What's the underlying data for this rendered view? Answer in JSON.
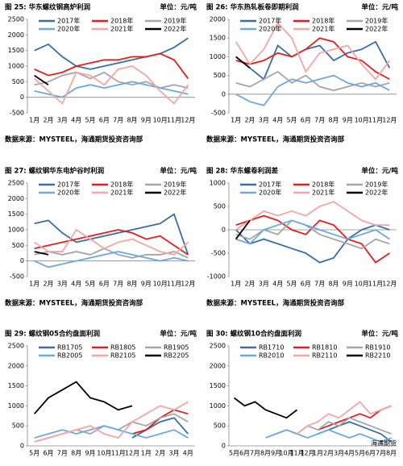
{
  "chart_data": [
    {
      "type": "line",
      "title": "图 25:  华东螺纹钢高炉利润",
      "unit": "单位：元/吨",
      "source": "数据来源：MYSTEEL，海通期货投资咨询部",
      "categories": [
        "1月",
        "2月",
        "3月",
        "4月",
        "5月",
        "6月",
        "7月",
        "8月",
        "9月",
        "10月",
        "11月",
        "12月"
      ],
      "ylim": [
        -500,
        2500
      ],
      "yticks": [
        -500,
        0,
        500,
        1000,
        1500,
        2000,
        2500
      ],
      "series": [
        {
          "name": "2017年",
          "color": "#3a6ea5",
          "values": [
            1500,
            1700,
            1300,
            1000,
            900,
            1000,
            1100,
            1200,
            1300,
            1400,
            1600,
            1900
          ]
        },
        {
          "name": "2018年",
          "color": "#e02020",
          "values": [
            900,
            700,
            800,
            1000,
            1100,
            1200,
            1200,
            1300,
            1300,
            1400,
            1200,
            600
          ]
        },
        {
          "name": "2019年",
          "color": "#a6a6a6",
          "values": [
            400,
            500,
            700,
            800,
            600,
            800,
            500,
            400,
            500,
            300,
            400,
            300
          ]
        },
        {
          "name": "2020年",
          "color": "#6fa8dc",
          "values": [
            200,
            100,
            0,
            300,
            400,
            300,
            400,
            500,
            400,
            300,
            200,
            100
          ]
        },
        {
          "name": "2021年",
          "color": "#f4a6a6",
          "values": [
            600,
            200,
            -200,
            800,
            700,
            400,
            900,
            1000,
            700,
            200,
            -200,
            400
          ]
        },
        {
          "name": "2022年",
          "color": "#000000",
          "values": [
            700,
            400,
            null,
            null,
            null,
            null,
            null,
            null,
            null,
            null,
            null,
            null
          ]
        }
      ]
    },
    {
      "type": "line",
      "title": "图 26:  华东热轧板卷即期利润",
      "unit": "单位：元/吨",
      "source": "数据来源：MYSTEEL，海通期货投资咨询部",
      "categories": [
        "1月",
        "2月",
        "3月",
        "4月",
        "5月",
        "6月",
        "7月",
        "8月",
        "9月",
        "10月",
        "11月",
        "12月"
      ],
      "ylim": [
        -500,
        2000
      ],
      "yticks": [
        -500,
        0,
        500,
        1000,
        1500,
        2000
      ],
      "series": [
        {
          "name": "2017年",
          "color": "#3a6ea5",
          "values": [
            1000,
            700,
            400,
            1300,
            1000,
            1200,
            1300,
            900,
            1100,
            1200,
            1400,
            700
          ]
        },
        {
          "name": "2018年",
          "color": "#e02020",
          "values": [
            900,
            800,
            900,
            1100,
            1000,
            1200,
            1500,
            1400,
            1000,
            900,
            600,
            400
          ]
        },
        {
          "name": "2019年",
          "color": "#a6a6a6",
          "values": [
            300,
            200,
            400,
            600,
            300,
            500,
            200,
            100,
            200,
            300,
            200,
            300
          ]
        },
        {
          "name": "2020年",
          "color": "#6fa8dc",
          "values": [
            0,
            -200,
            -300,
            200,
            400,
            300,
            400,
            500,
            300,
            200,
            300,
            100
          ]
        },
        {
          "name": "2021年",
          "color": "#f4a6a6",
          "values": [
            1400,
            800,
            1200,
            1900,
            1500,
            600,
            1100,
            1200,
            1300,
            800,
            400,
            900
          ]
        },
        {
          "name": "2022年",
          "color": "#000000",
          "values": [
            1000,
            700,
            null,
            null,
            null,
            null,
            null,
            null,
            null,
            null,
            null,
            null
          ]
        }
      ]
    },
    {
      "type": "line",
      "title": "图 27:  螺纹钢华东电炉谷时利润",
      "unit": "单位：元/吨",
      "source": "数据来源：MYSTEEL，海通期货投资咨询部",
      "categories": [
        "1月",
        "2月",
        "3月",
        "4月",
        "5月",
        "6月",
        "7月",
        "8月",
        "9月",
        "10月",
        "11月",
        "12月"
      ],
      "ylim": [
        -500,
        2500
      ],
      "yticks": [
        -500,
        0,
        500,
        1000,
        1500,
        2000,
        2500
      ],
      "series": [
        {
          "name": "2017年",
          "color": "#3a6ea5",
          "values": [
            1200,
            1300,
            900,
            600,
            700,
            800,
            900,
            1000,
            1100,
            1200,
            1500,
            200
          ]
        },
        {
          "name": "2018年",
          "color": "#e02020",
          "values": [
            400,
            500,
            600,
            700,
            800,
            900,
            1000,
            900,
            700,
            800,
            500,
            200
          ]
        },
        {
          "name": "2019年",
          "color": "#a6a6a6",
          "values": [
            200,
            300,
            200,
            300,
            200,
            400,
            200,
            100,
            200,
            200,
            300,
            100
          ]
        },
        {
          "name": "2020年",
          "color": "#6fa8dc",
          "values": [
            0,
            -200,
            -100,
            0,
            100,
            200,
            300,
            200,
            100,
            0,
            100,
            0
          ]
        },
        {
          "name": "2021年",
          "color": "#f4a6a6",
          "values": [
            600,
            300,
            300,
            1000,
            700,
            400,
            600,
            700,
            500,
            300,
            200,
            600
          ]
        },
        {
          "name": "2022年",
          "color": "#000000",
          "values": [
            300,
            200,
            null,
            null,
            null,
            null,
            null,
            null,
            null,
            null,
            null,
            null
          ]
        }
      ]
    },
    {
      "type": "line",
      "title": "图 28:  华东螺卷利润差",
      "unit": "单位：元/吨",
      "source": "数据来源：MYSTEEL，海通期货投资咨询部",
      "categories": [
        "1月",
        "2月",
        "3月",
        "4月",
        "5月",
        "6月",
        "7月",
        "8月",
        "9月",
        "10月",
        "11月",
        "12月"
      ],
      "ylim": [
        -1000,
        1000
      ],
      "yticks": [
        -1000,
        -500,
        0,
        500,
        1000
      ],
      "series": [
        {
          "name": "2017年",
          "color": "#3a6ea5",
          "values": [
            0,
            -300,
            -200,
            -300,
            -400,
            -500,
            -700,
            -600,
            -200,
            0,
            100,
            0
          ]
        },
        {
          "name": "2018年",
          "color": "#e02020",
          "values": [
            100,
            200,
            300,
            200,
            0,
            -100,
            200,
            100,
            -200,
            -300,
            -700,
            -500
          ]
        },
        {
          "name": "2019年",
          "color": "#a6a6a6",
          "values": [
            -100,
            -200,
            0,
            -100,
            200,
            100,
            -100,
            -200,
            -300,
            -400,
            -200,
            -300
          ]
        },
        {
          "name": "2020年",
          "color": "#6fa8dc",
          "values": [
            -200,
            -300,
            0,
            100,
            200,
            100,
            0,
            -100,
            -200,
            -100,
            0,
            -200
          ]
        },
        {
          "name": "2021年",
          "color": "#f4a6a6",
          "values": [
            0,
            200,
            400,
            300,
            400,
            300,
            500,
            600,
            400,
            200,
            100,
            100
          ]
        },
        {
          "name": "2022年",
          "color": "#000000",
          "values": [
            -200,
            200,
            null,
            null,
            null,
            null,
            null,
            null,
            null,
            null,
            null,
            null
          ]
        }
      ]
    },
    {
      "type": "line",
      "title": "图 29:  螺纹钢05合约盘面利润",
      "unit": "单位：元/吨",
      "categories": [
        "5月",
        "6月",
        "7月",
        "8月",
        "9月",
        "10月",
        "11月",
        "12月",
        "1月",
        "2月",
        "3月",
        "4月"
      ],
      "ylim": [
        0,
        2500
      ],
      "yticks": [
        0,
        500,
        1000,
        1500,
        2000,
        2500
      ],
      "series": [
        {
          "name": "RB1705",
          "color": "#3a6ea5",
          "values": [
            null,
            null,
            null,
            null,
            null,
            null,
            null,
            200,
            400,
            600,
            700,
            300
          ]
        },
        {
          "name": "RB1805",
          "color": "#e02020",
          "values": [
            null,
            null,
            null,
            null,
            null,
            null,
            null,
            300,
            400,
            700,
            900,
            800
          ]
        },
        {
          "name": "RB1905",
          "color": "#a6a6a6",
          "values": [
            100,
            200,
            300,
            400,
            300,
            500,
            400,
            600,
            500,
            700,
            800,
            600
          ]
        },
        {
          "name": "RB2005",
          "color": "#6fa8dc",
          "values": [
            200,
            300,
            400,
            300,
            400,
            500,
            400,
            300,
            200,
            300,
            400,
            200
          ]
        },
        {
          "name": "RB2105",
          "color": "#f4a6a6",
          "values": [
            100,
            200,
            300,
            400,
            500,
            300,
            200,
            600,
            800,
            1000,
            900,
            1100
          ]
        },
        {
          "name": "RB2205",
          "color": "#000000",
          "values": [
            800,
            1200,
            1400,
            1600,
            1200,
            1100,
            900,
            1000,
            null,
            null,
            null,
            null
          ]
        }
      ]
    },
    {
      "type": "line",
      "title": "图 30:  螺纹钢10合约盘面利润",
      "unit": "单位：元/吨",
      "watermark": "海通期货",
      "categories": [
        "5月",
        "6月",
        "7月",
        "8月",
        "9月",
        "10月",
        "11月",
        "12月",
        "1月",
        "2月",
        "3月",
        "4月",
        "5月",
        "6月",
        "7月",
        "8月"
      ],
      "ylim": [
        0,
        2500
      ],
      "yticks": [
        0,
        500,
        1000,
        1500,
        2000,
        2500
      ],
      "series": [
        {
          "name": "RB1710",
          "color": "#3a6ea5",
          "values": [
            null,
            null,
            null,
            null,
            null,
            null,
            null,
            null,
            300,
            400,
            500,
            600,
            500,
            400,
            300,
            100
          ]
        },
        {
          "name": "RB1810",
          "color": "#e02020",
          "values": [
            null,
            null,
            null,
            null,
            null,
            null,
            null,
            null,
            400,
            500,
            600,
            700,
            800,
            700,
            900,
            1000
          ]
        },
        {
          "name": "RB1910",
          "color": "#a6a6a6",
          "values": [
            null,
            null,
            null,
            null,
            300,
            400,
            300,
            500,
            400,
            600,
            500,
            700,
            600,
            500,
            400,
            300
          ]
        },
        {
          "name": "RB2010",
          "color": "#6fa8dc",
          "values": [
            null,
            null,
            null,
            200,
            300,
            400,
            300,
            200,
            300,
            400,
            300,
            200,
            300,
            200,
            100,
            200
          ]
        },
        {
          "name": "RB2110",
          "color": "#f4a6a6",
          "values": [
            null,
            null,
            null,
            null,
            null,
            null,
            300,
            500,
            600,
            800,
            700,
            900,
            1100,
            800,
            900,
            1000
          ]
        },
        {
          "name": "RB2210",
          "color": "#000000",
          "values": [
            1200,
            1000,
            1100,
            900,
            800,
            700,
            900,
            null,
            null,
            null,
            null,
            null,
            null,
            null,
            null,
            null
          ]
        }
      ]
    }
  ]
}
